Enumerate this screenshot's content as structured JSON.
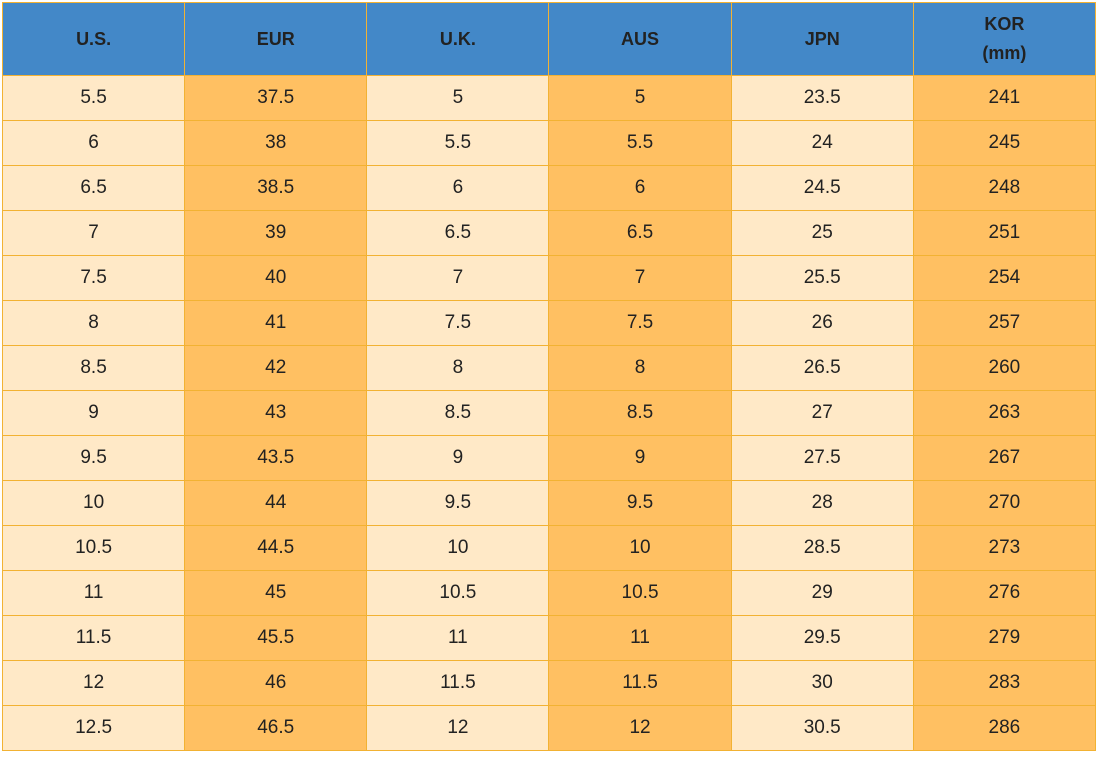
{
  "table": {
    "headers": [
      "U.S.",
      "EUR",
      "U.K.",
      "AUS",
      "JPN",
      "KOR\n(mm)"
    ],
    "rows": [
      [
        "5.5",
        "37.5",
        "5",
        "5",
        "23.5",
        "241"
      ],
      [
        "6",
        "38",
        "5.5",
        "5.5",
        "24",
        "245"
      ],
      [
        "6.5",
        "38.5",
        "6",
        "6",
        "24.5",
        "248"
      ],
      [
        "7",
        "39",
        "6.5",
        "6.5",
        "25",
        "251"
      ],
      [
        "7.5",
        "40",
        "7",
        "7",
        "25.5",
        "254"
      ],
      [
        "8",
        "41",
        "7.5",
        "7.5",
        "26",
        "257"
      ],
      [
        "8.5",
        "42",
        "8",
        "8",
        "26.5",
        "260"
      ],
      [
        "9",
        "43",
        "8.5",
        "8.5",
        "27",
        "263"
      ],
      [
        "9.5",
        "43.5",
        "9",
        "9",
        "27.5",
        "267"
      ],
      [
        "10",
        "44",
        "9.5",
        "9.5",
        "28",
        "270"
      ],
      [
        "10.5",
        "44.5",
        "10",
        "10",
        "28.5",
        "273"
      ],
      [
        "11",
        "45",
        "10.5",
        "10.5",
        "29",
        "276"
      ],
      [
        "11.5",
        "45.5",
        "11",
        "11",
        "29.5",
        "279"
      ],
      [
        "12",
        "46",
        "11.5",
        "11.5",
        "30",
        "283"
      ],
      [
        "12.5",
        "46.5",
        "12",
        "12",
        "30.5",
        "286"
      ]
    ]
  }
}
